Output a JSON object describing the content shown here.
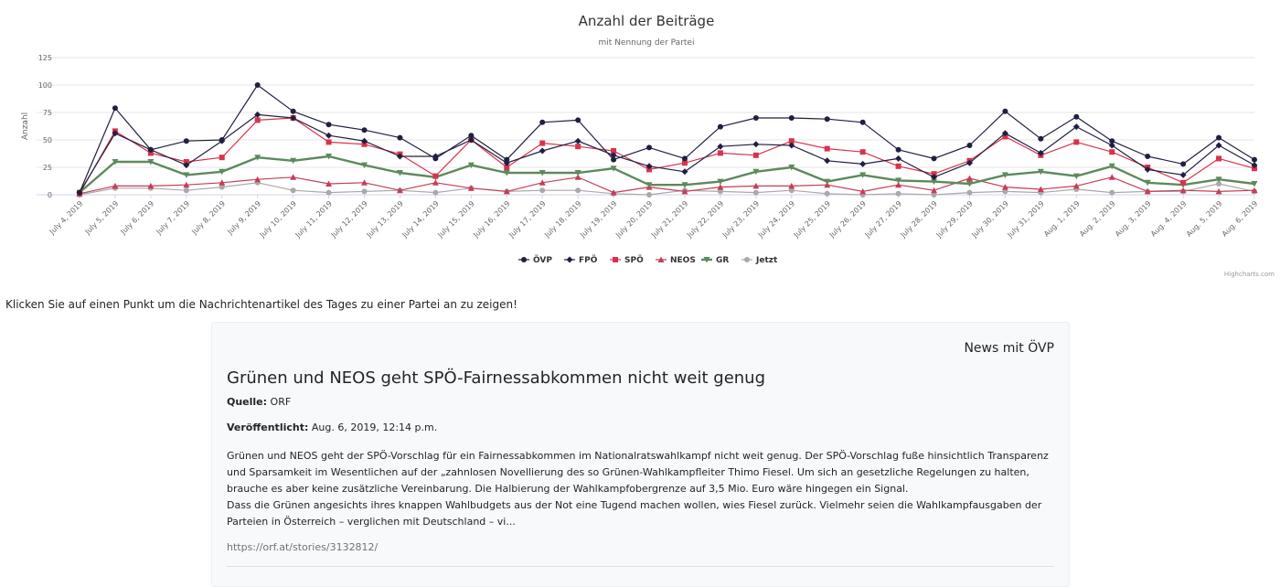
{
  "chart_data": {
    "type": "line",
    "title": "Anzahl der Beiträge",
    "subtitle": "mit Nennung der Partei",
    "ylabel": "Anzahl",
    "xlabel": "",
    "ylim": [
      0,
      125
    ],
    "yticks": [
      "0",
      "25",
      "50",
      "75",
      "100",
      "125"
    ],
    "grid": true,
    "legend_position": "bottom-center",
    "credits": "Highcharts.com",
    "categories": [
      "July 4, 2019",
      "July 5, 2019",
      "July 6, 2019",
      "July 7, 2019",
      "July 8, 2019",
      "July 9, 2019",
      "July 10, 2019",
      "July 11, 2019",
      "July 12, 2019",
      "July 13, 2019",
      "July 14, 2019",
      "July 15, 2019",
      "July 16, 2019",
      "July 17, 2019",
      "July 18, 2019",
      "July 19, 2019",
      "July 20, 2019",
      "July 21, 2019",
      "July 22, 2019",
      "July 23, 2019",
      "July 24, 2019",
      "July 25, 2019",
      "July 26, 2019",
      "July 27, 2019",
      "July 28, 2019",
      "July 29, 2019",
      "July 30, 2019",
      "July 31, 2019",
      "Aug. 1, 2019",
      "Aug. 2, 2019",
      "Aug. 3, 2019",
      "Aug. 4, 2019",
      "Aug. 5, 2019",
      "Aug. 6, 2019"
    ],
    "series": [
      {
        "name": "ÖVP",
        "color": "#1f2041",
        "marker": "circle",
        "values": [
          2,
          79,
          41,
          49,
          50,
          100,
          76,
          64,
          59,
          52,
          33,
          54,
          32,
          66,
          68,
          32,
          43,
          33,
          62,
          70,
          70,
          69,
          66,
          41,
          33,
          45,
          76,
          51,
          71,
          49,
          35,
          28,
          52,
          32
        ]
      },
      {
        "name": "FPÖ",
        "color": "#1f2041",
        "marker": "diamond",
        "values": [
          2,
          56,
          41,
          27,
          49,
          73,
          70,
          54,
          49,
          35,
          35,
          50,
          29,
          40,
          49,
          36,
          26,
          21,
          44,
          46,
          45,
          31,
          28,
          33,
          16,
          29,
          56,
          38,
          62,
          45,
          23,
          18,
          45,
          27
        ]
      },
      {
        "name": "SPÖ",
        "color": "#d9334b",
        "marker": "square",
        "values": [
          1,
          58,
          38,
          30,
          34,
          68,
          70,
          48,
          46,
          37,
          17,
          50,
          25,
          47,
          44,
          40,
          23,
          29,
          38,
          36,
          49,
          42,
          39,
          26,
          19,
          31,
          53,
          36,
          48,
          39,
          25,
          11,
          33,
          24
        ]
      },
      {
        "name": "NEOS",
        "color": "#c73d55",
        "marker": "triangle",
        "values": [
          1,
          8,
          8,
          9,
          11,
          14,
          16,
          10,
          11,
          4,
          11,
          6,
          3,
          11,
          16,
          2,
          7,
          3,
          7,
          8,
          8,
          9,
          3,
          9,
          4,
          15,
          7,
          5,
          8,
          16,
          3,
          4,
          3,
          4
        ]
      },
      {
        "name": "GR",
        "color": "#5c8a5c",
        "marker": "triangle-down",
        "values": [
          2,
          30,
          30,
          18,
          21,
          34,
          31,
          35,
          27,
          20,
          16,
          27,
          20,
          20,
          20,
          24,
          9,
          9,
          12,
          21,
          25,
          12,
          18,
          13,
          12,
          10,
          18,
          21,
          17,
          26,
          11,
          9,
          14,
          10
        ]
      },
      {
        "name": "Jetzt",
        "color": "#a9a9a9",
        "marker": "circle",
        "values": [
          0,
          6,
          6,
          4,
          7,
          11,
          4,
          2,
          3,
          4,
          2,
          6,
          3,
          4,
          4,
          1,
          0,
          4,
          3,
          2,
          4,
          1,
          0,
          1,
          0,
          2,
          3,
          2,
          5,
          2,
          3,
          3,
          10,
          3
        ]
      }
    ]
  },
  "hint": "Klicken Sie auf einen Punkt um die Nachrichtenartikel des Tages zu einer Partei an zu zeigen!",
  "card": {
    "header": "News mit ÖVP",
    "title": "Grünen und NEOS geht SPÖ-Fairnessabkommen nicht weit genug",
    "source_label": "Quelle:",
    "source_value": "ORF",
    "published_label": "Veröffentlicht:",
    "published_value": "Aug. 6, 2019, 12:14 p.m.",
    "paragraph1": "Grünen und NEOS geht der SPÖ-Vorschlag für ein Fairnessabkommen im Nationalratswahlkampf nicht weit genug. Der SPÖ-Vorschlag fuße hinsichtlich Transparenz und Sparsamkeit im Wesentlichen auf der „zahnlosen Novellierung des so Grünen-Wahlkampfleiter Thimo Fiesel. Um sich an gesetzliche Regelungen zu halten, brauche es aber keine zusätzliche Vereinbarung. Die Halbierung der Wahlkampfobergrenze auf 3,5 Mio. Euro wäre hingegen ein Signal.",
    "paragraph2": "Dass die Grünen angesichts ihres knappen Wahlbudgets aus der Not eine Tugend machen wollen, wies Fiesel zurück. Vielmehr seien die Wahlkampfausgaben der Parteien in Österreich – verglichen mit Deutschland – vi...",
    "link": "https://orf.at/stories/3132812/"
  }
}
